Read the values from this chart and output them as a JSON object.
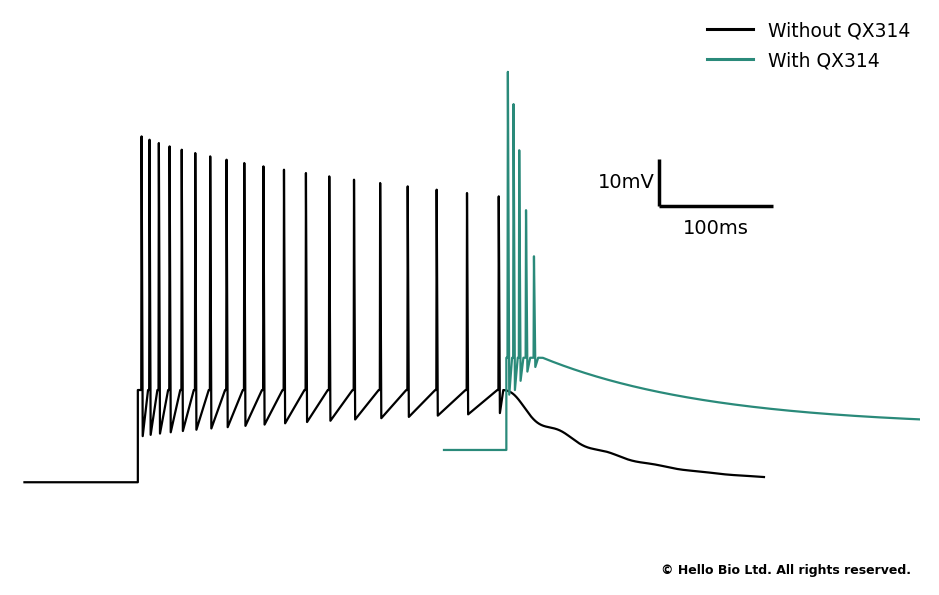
{
  "black_color": "#000000",
  "teal_color": "#2a8a7a",
  "background_color": "#ffffff",
  "legend_without": "Without QX314",
  "legend_with": "With QX314",
  "scale_bar_mV": "10mV",
  "scale_bar_ms": "100ms",
  "copyright": "© Hello Bio Ltd. All rights reserved.",
  "line_width": 1.6
}
